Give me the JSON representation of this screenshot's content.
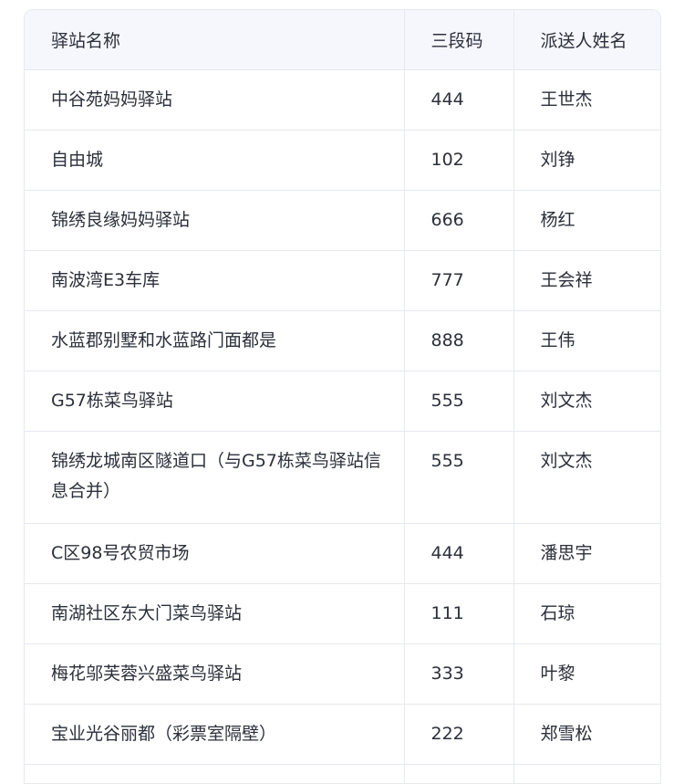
{
  "table": {
    "headers": [
      "驿站名称",
      "三段码",
      "派送人姓名"
    ],
    "rows": [
      {
        "name": "中谷苑妈妈驿站",
        "code": "444",
        "courier": "王世杰"
      },
      {
        "name": "自由城",
        "code": "102",
        "courier": "刘铮"
      },
      {
        "name": "锦绣良缘妈妈驿站",
        "code": "666",
        "courier": "杨红"
      },
      {
        "name": "南波湾E3车库",
        "code": "777",
        "courier": "王会祥"
      },
      {
        "name": "水蓝郡别墅和水蓝路门面都是",
        "code": "888",
        "courier": "王伟"
      },
      {
        "name": "G57栋菜鸟驿站",
        "code": "555",
        "courier": "刘文杰"
      },
      {
        "name": "锦绣龙城南区隧道口（与G57栋菜鸟驿站信息合并）",
        "code": "555",
        "courier": "刘文杰"
      },
      {
        "name": "C区98号农贸市场",
        "code": "444",
        "courier": "潘思宇"
      },
      {
        "name": "南湖社区东大门菜鸟驿站",
        "code": "111",
        "courier": "石琼"
      },
      {
        "name": "梅花邬芙蓉兴盛菜鸟驿站",
        "code": "333",
        "courier": "叶黎"
      },
      {
        "name": "宝业光谷丽都（彩票室隔壁）",
        "code": "222",
        "courier": "郑雪松"
      }
    ]
  }
}
